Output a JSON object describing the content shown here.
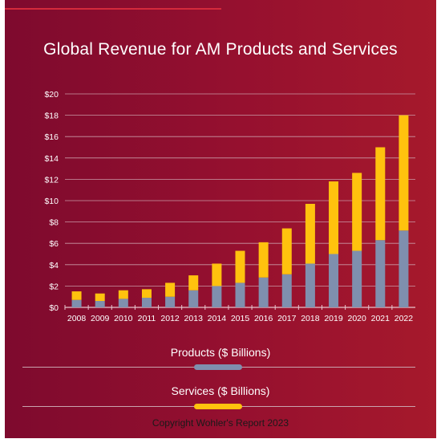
{
  "chart_data": {
    "type": "bar",
    "stacked": true,
    "title": "Global Revenue for AM Products and Services",
    "categories": [
      "2008",
      "2009",
      "2010",
      "2011",
      "2012",
      "2013",
      "2014",
      "2015",
      "2016",
      "2017",
      "2018",
      "2019",
      "2020",
      "2021",
      "2022"
    ],
    "series": [
      {
        "name": "Products ($ Billions)",
        "color": "#7f8fae",
        "values": [
          0.7,
          0.6,
          0.8,
          0.9,
          1.0,
          1.6,
          2.0,
          2.3,
          2.8,
          3.1,
          4.1,
          5.0,
          5.3,
          6.3,
          7.2
        ]
      },
      {
        "name": "Services ($ Billions)",
        "color": "#ffc20e",
        "values": [
          0.8,
          0.7,
          0.8,
          0.8,
          1.3,
          1.4,
          2.1,
          3.0,
          3.3,
          4.3,
          5.6,
          6.8,
          7.3,
          8.7,
          10.8
        ]
      }
    ],
    "yticks": [
      "$0",
      "$2",
      "$4",
      "$6",
      "$8",
      "$10",
      "$12",
      "$14",
      "$16",
      "$18",
      "$20"
    ],
    "ylim": [
      0,
      20
    ],
    "grid": true,
    "legend_position": "bottom"
  },
  "footer": {
    "copyright": "Copyright Wohler's Report 2023"
  }
}
